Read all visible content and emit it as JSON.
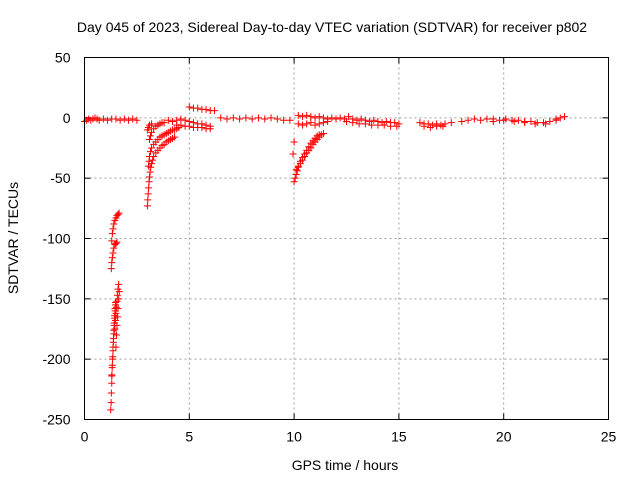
{
  "chart_data": {
    "type": "scatter",
    "title": "Day 045 of 2023, Sidereal Day-to-day VTEC variation (SDTVAR) for receiver p802",
    "xlabel": "GPS time / hours",
    "ylabel": "SDTVAR / TECUs",
    "xlim": [
      0,
      25
    ],
    "ylim": [
      -250,
      50
    ],
    "xticks": [
      0,
      5,
      10,
      15,
      20,
      25
    ],
    "yticks": [
      50,
      0,
      -50,
      -100,
      -150,
      -200,
      -250
    ],
    "xtick_labels": [
      "0",
      "5",
      "10",
      "15",
      "20",
      "25"
    ],
    "ytick_labels": [
      "50",
      "0",
      "-50",
      "-100",
      "-150",
      "-200",
      "-250"
    ],
    "grid": true,
    "marker": "plus",
    "series": [
      {
        "name": "SDTVAR",
        "color": "#ff0000",
        "points": [
          [
            0.0,
            -3
          ],
          [
            0.1,
            -2
          ],
          [
            0.2,
            -1
          ],
          [
            0.3,
            -2
          ],
          [
            0.4,
            -1
          ],
          [
            0.5,
            0
          ],
          [
            0.6,
            -1
          ],
          [
            0.7,
            -2
          ],
          [
            0.9,
            -1
          ],
          [
            1.1,
            -2
          ],
          [
            1.3,
            -1
          ],
          [
            1.5,
            -1
          ],
          [
            1.7,
            -2
          ],
          [
            1.9,
            -1
          ],
          [
            2.1,
            -2
          ],
          [
            2.3,
            -1
          ],
          [
            2.5,
            -2
          ],
          [
            1.25,
            -242
          ],
          [
            1.27,
            -236
          ],
          [
            1.28,
            -228
          ],
          [
            1.3,
            -220
          ],
          [
            1.31,
            -213
          ],
          [
            1.33,
            -205
          ],
          [
            1.35,
            -198
          ],
          [
            1.36,
            -190
          ],
          [
            1.38,
            -183
          ],
          [
            1.4,
            -176
          ],
          [
            1.42,
            -170
          ],
          [
            1.44,
            -164
          ],
          [
            1.46,
            -158
          ],
          [
            1.48,
            -153
          ],
          [
            1.3,
            -214
          ],
          [
            1.32,
            -207
          ],
          [
            1.34,
            -200
          ],
          [
            1.36,
            -193
          ],
          [
            1.38,
            -186
          ],
          [
            1.4,
            -179
          ],
          [
            1.42,
            -172
          ],
          [
            1.44,
            -166
          ],
          [
            1.46,
            -160
          ],
          [
            1.48,
            -155
          ],
          [
            1.45,
            -175
          ],
          [
            1.48,
            -168
          ],
          [
            1.5,
            -162
          ],
          [
            1.52,
            -157
          ],
          [
            1.55,
            -152
          ],
          [
            1.57,
            -147
          ],
          [
            1.6,
            -142
          ],
          [
            1.63,
            -138
          ],
          [
            1.5,
            -190
          ],
          [
            1.53,
            -180
          ],
          [
            1.55,
            -172
          ],
          [
            1.58,
            -165
          ],
          [
            1.6,
            -158
          ],
          [
            1.63,
            -150
          ],
          [
            1.66,
            -144
          ],
          [
            1.28,
            -125
          ],
          [
            1.3,
            -120
          ],
          [
            1.33,
            -116
          ],
          [
            1.36,
            -112
          ],
          [
            1.4,
            -108
          ],
          [
            1.45,
            -105
          ],
          [
            1.5,
            -104
          ],
          [
            1.55,
            -103
          ],
          [
            1.3,
            -102
          ],
          [
            1.33,
            -96
          ],
          [
            1.36,
            -92
          ],
          [
            1.4,
            -88
          ],
          [
            1.45,
            -85
          ],
          [
            1.5,
            -83
          ],
          [
            1.55,
            -81
          ],
          [
            1.6,
            -80
          ],
          [
            1.65,
            -79
          ],
          [
            3.0,
            -73
          ],
          [
            3.02,
            -68
          ],
          [
            3.04,
            -63
          ],
          [
            3.06,
            -58
          ],
          [
            3.08,
            -53
          ],
          [
            3.1,
            -49
          ],
          [
            3.13,
            -45
          ],
          [
            3.16,
            -41
          ],
          [
            3.2,
            -38
          ],
          [
            3.25,
            -35
          ],
          [
            3.3,
            -32
          ],
          [
            3.4,
            -29
          ],
          [
            3.5,
            -27
          ],
          [
            3.6,
            -25
          ],
          [
            3.7,
            -23
          ],
          [
            3.8,
            -22
          ],
          [
            3.9,
            -20
          ],
          [
            4.0,
            -19
          ],
          [
            4.1,
            -18
          ],
          [
            4.2,
            -17
          ],
          [
            4.3,
            -16
          ],
          [
            3.05,
            -40
          ],
          [
            3.08,
            -36
          ],
          [
            3.1,
            -32
          ],
          [
            3.15,
            -28
          ],
          [
            3.2,
            -25
          ],
          [
            3.3,
            -22
          ],
          [
            3.4,
            -20
          ],
          [
            3.5,
            -18
          ],
          [
            3.6,
            -16
          ],
          [
            3.7,
            -15
          ],
          [
            3.8,
            -14
          ],
          [
            3.9,
            -13
          ],
          [
            4.0,
            -12
          ],
          [
            4.1,
            -11
          ],
          [
            4.2,
            -10
          ],
          [
            4.3,
            -10
          ],
          [
            4.4,
            -9
          ],
          [
            4.5,
            -8
          ],
          [
            3.1,
            -18
          ],
          [
            3.15,
            -15
          ],
          [
            3.2,
            -12
          ],
          [
            3.3,
            -9
          ],
          [
            3.4,
            -7
          ],
          [
            3.5,
            -6
          ],
          [
            3.6,
            -5
          ],
          [
            3.7,
            -4
          ],
          [
            3.8,
            -4
          ],
          [
            3.0,
            -10
          ],
          [
            3.05,
            -8
          ],
          [
            3.1,
            -6
          ],
          [
            3.2,
            -5
          ],
          [
            4.0,
            -2
          ],
          [
            4.2,
            -3
          ],
          [
            4.4,
            -2
          ],
          [
            4.6,
            -1
          ],
          [
            4.8,
            -2
          ],
          [
            5.0,
            -3
          ],
          [
            5.2,
            -4
          ],
          [
            5.4,
            -5
          ],
          [
            5.6,
            -5
          ],
          [
            5.8,
            -6
          ],
          [
            6.0,
            -7
          ],
          [
            4.4,
            -6
          ],
          [
            4.6,
            -6
          ],
          [
            4.8,
            -7
          ],
          [
            5.0,
            -7
          ],
          [
            5.2,
            -8
          ],
          [
            5.4,
            -8
          ],
          [
            5.6,
            -8
          ],
          [
            5.8,
            -9
          ],
          [
            6.0,
            -9
          ],
          [
            5.0,
            9
          ],
          [
            5.2,
            8
          ],
          [
            5.4,
            8
          ],
          [
            5.6,
            7
          ],
          [
            5.8,
            7
          ],
          [
            6.0,
            6
          ],
          [
            6.2,
            6
          ],
          [
            6.5,
            0
          ],
          [
            6.8,
            -1
          ],
          [
            7.1,
            0
          ],
          [
            7.4,
            -1
          ],
          [
            7.7,
            0
          ],
          [
            8.0,
            -1
          ],
          [
            8.3,
            0
          ],
          [
            8.6,
            -1
          ],
          [
            8.9,
            0
          ],
          [
            9.2,
            -1
          ],
          [
            9.5,
            -2
          ],
          [
            9.8,
            -2
          ],
          [
            10.0,
            -20
          ],
          [
            9.95,
            -30
          ],
          [
            10.0,
            -53
          ],
          [
            10.05,
            -50
          ],
          [
            10.1,
            -47
          ],
          [
            10.15,
            -44
          ],
          [
            10.2,
            -41
          ],
          [
            10.3,
            -38
          ],
          [
            10.4,
            -35
          ],
          [
            10.5,
            -32
          ],
          [
            10.6,
            -29
          ],
          [
            10.7,
            -27
          ],
          [
            10.8,
            -25
          ],
          [
            10.9,
            -22
          ],
          [
            11.0,
            -20
          ],
          [
            11.1,
            -18
          ],
          [
            11.2,
            -16
          ],
          [
            11.3,
            -14
          ],
          [
            11.4,
            -13
          ],
          [
            10.1,
            -43
          ],
          [
            10.2,
            -40
          ],
          [
            10.3,
            -36
          ],
          [
            10.4,
            -33
          ],
          [
            10.5,
            -30
          ],
          [
            10.6,
            -27
          ],
          [
            10.7,
            -24
          ],
          [
            10.8,
            -21
          ],
          [
            10.9,
            -19
          ],
          [
            11.0,
            -17
          ],
          [
            11.1,
            -15
          ],
          [
            11.2,
            -14
          ],
          [
            10.2,
            -5
          ],
          [
            10.4,
            -6
          ],
          [
            10.6,
            -5
          ],
          [
            10.8,
            -4
          ],
          [
            11.0,
            -6
          ],
          [
            11.2,
            -5
          ],
          [
            11.4,
            -4
          ],
          [
            11.6,
            -3
          ],
          [
            10.2,
            2
          ],
          [
            10.4,
            1
          ],
          [
            10.6,
            2
          ],
          [
            10.8,
            1
          ],
          [
            11.0,
            0
          ],
          [
            11.2,
            1
          ],
          [
            11.4,
            0
          ],
          [
            11.6,
            -1
          ],
          [
            11.8,
            0
          ],
          [
            12.0,
            -1
          ],
          [
            12.2,
            0
          ],
          [
            12.4,
            -1
          ],
          [
            12.6,
            1
          ],
          [
            12.8,
            -1
          ],
          [
            13.0,
            -2
          ],
          [
            13.2,
            -1
          ],
          [
            13.4,
            -2
          ],
          [
            13.6,
            -3
          ],
          [
            13.8,
            -2
          ],
          [
            14.0,
            -3
          ],
          [
            14.2,
            -4
          ],
          [
            14.4,
            -3
          ],
          [
            14.6,
            -4
          ],
          [
            14.8,
            -4
          ],
          [
            15.0,
            -5
          ],
          [
            12.5,
            -3
          ],
          [
            12.8,
            -4
          ],
          [
            13.1,
            -5
          ],
          [
            13.4,
            -5
          ],
          [
            13.7,
            -6
          ],
          [
            14.0,
            -6
          ],
          [
            14.3,
            -6
          ],
          [
            14.6,
            -7
          ],
          [
            14.9,
            -7
          ],
          [
            16.0,
            -4
          ],
          [
            16.2,
            -5
          ],
          [
            16.4,
            -5
          ],
          [
            16.6,
            -6
          ],
          [
            16.8,
            -5
          ],
          [
            17.0,
            -6
          ],
          [
            17.2,
            -5
          ],
          [
            17.5,
            -4
          ],
          [
            16.2,
            -7
          ],
          [
            16.5,
            -8
          ],
          [
            16.8,
            -7
          ],
          [
            17.1,
            -7
          ],
          [
            18.0,
            -3
          ],
          [
            18.3,
            -2
          ],
          [
            18.6,
            -1
          ],
          [
            18.9,
            -2
          ],
          [
            19.2,
            -1
          ],
          [
            19.5,
            -1
          ],
          [
            19.8,
            -2
          ],
          [
            20.1,
            -1
          ],
          [
            20.4,
            -2
          ],
          [
            20.7,
            -2
          ],
          [
            21.0,
            -3
          ],
          [
            21.3,
            -3
          ],
          [
            21.6,
            -4
          ],
          [
            21.9,
            -4
          ],
          [
            22.2,
            -3
          ],
          [
            22.5,
            -1
          ],
          [
            22.7,
            0
          ],
          [
            22.9,
            1
          ],
          [
            19.5,
            -3
          ],
          [
            20.0,
            -2
          ],
          [
            20.5,
            -3
          ],
          [
            21.0,
            -4
          ],
          [
            21.5,
            -5
          ],
          [
            22.0,
            -5
          ],
          [
            22.5,
            -2
          ]
        ]
      }
    ]
  }
}
